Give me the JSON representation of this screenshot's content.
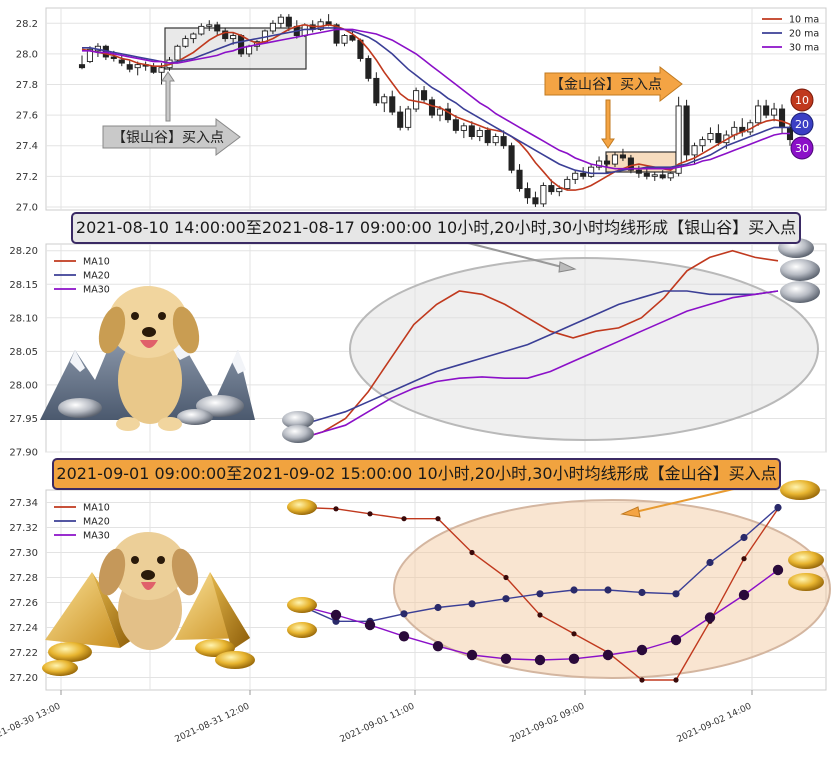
{
  "chart_data": [
    {
      "type": "candlestick",
      "title": "",
      "x_span": [
        "2021-08-30 13:00",
        "2021-09-02 15:00"
      ],
      "ylim": [
        26.98,
        28.3
      ],
      "yticks": [
        "28.2",
        "28.0",
        "27.8",
        "27.6",
        "27.4",
        "27.2",
        "27.0"
      ],
      "grid": true,
      "legend_position": "top-right",
      "legend": [
        "10 ma",
        "20 ma",
        "30 ma"
      ],
      "colors": {
        "ma10": "#c0391e",
        "ma20": "#3b3f96",
        "ma30": "#8b10c8",
        "candle": "#222222"
      },
      "candles": [
        [
          27.93,
          27.99,
          27.9,
          27.91
        ],
        [
          27.95,
          28.05,
          27.94,
          28.03
        ],
        [
          28.02,
          28.07,
          27.98,
          28.05
        ],
        [
          28.05,
          28.06,
          27.96,
          27.98
        ],
        [
          27.98,
          28.02,
          27.95,
          27.97
        ],
        [
          27.96,
          27.99,
          27.92,
          27.94
        ],
        [
          27.93,
          27.96,
          27.88,
          27.9
        ],
        [
          27.91,
          27.95,
          27.86,
          27.93
        ],
        [
          27.93,
          27.95,
          27.89,
          27.92
        ],
        [
          27.92,
          27.94,
          27.87,
          27.88
        ],
        [
          27.88,
          27.94,
          27.8,
          27.91
        ],
        [
          27.91,
          27.98,
          27.89,
          27.96
        ],
        [
          27.96,
          28.06,
          27.95,
          28.05
        ],
        [
          28.05,
          28.12,
          28.04,
          28.1
        ],
        [
          28.1,
          28.14,
          28.07,
          28.13
        ],
        [
          28.13,
          28.2,
          28.12,
          28.18
        ],
        [
          28.18,
          28.22,
          28.15,
          28.19
        ],
        [
          28.19,
          28.21,
          28.12,
          28.15
        ],
        [
          28.15,
          28.17,
          28.08,
          28.1
        ],
        [
          28.1,
          28.14,
          28.06,
          28.12
        ],
        [
          28.12,
          28.13,
          27.98,
          28.0
        ],
        [
          28.0,
          28.06,
          27.98,
          28.05
        ],
        [
          28.05,
          28.09,
          28.02,
          28.08
        ],
        [
          28.08,
          28.16,
          28.07,
          28.15
        ],
        [
          28.15,
          28.22,
          28.13,
          28.2
        ],
        [
          28.2,
          28.26,
          28.17,
          28.24
        ],
        [
          28.24,
          28.26,
          28.15,
          28.18
        ],
        [
          28.18,
          28.22,
          28.1,
          28.12
        ],
        [
          28.12,
          28.2,
          28.11,
          28.19
        ],
        [
          28.19,
          28.22,
          28.14,
          28.16
        ],
        [
          28.16,
          28.23,
          28.15,
          28.21
        ],
        [
          28.21,
          28.26,
          28.18,
          28.19
        ],
        [
          28.19,
          28.2,
          28.05,
          28.07
        ],
        [
          28.07,
          28.13,
          28.05,
          28.12
        ],
        [
          28.12,
          28.15,
          28.08,
          28.09
        ],
        [
          28.09,
          28.1,
          27.95,
          27.97
        ],
        [
          27.97,
          27.99,
          27.82,
          27.84
        ],
        [
          27.84,
          27.88,
          27.66,
          27.68
        ],
        [
          27.68,
          27.74,
          27.62,
          27.72
        ],
        [
          27.72,
          27.76,
          27.6,
          27.62
        ],
        [
          27.62,
          27.66,
          27.5,
          27.52
        ],
        [
          27.52,
          27.66,
          27.5,
          27.64
        ],
        [
          27.64,
          27.78,
          27.62,
          27.76
        ],
        [
          27.76,
          27.79,
          27.68,
          27.7
        ],
        [
          27.7,
          27.72,
          27.58,
          27.6
        ],
        [
          27.6,
          27.66,
          27.56,
          27.64
        ],
        [
          27.64,
          27.68,
          27.55,
          27.57
        ],
        [
          27.57,
          27.6,
          27.48,
          27.5
        ],
        [
          27.5,
          27.55,
          27.45,
          27.53
        ],
        [
          27.53,
          27.56,
          27.44,
          27.46
        ],
        [
          27.46,
          27.52,
          27.43,
          27.5
        ],
        [
          27.5,
          27.52,
          27.4,
          27.42
        ],
        [
          27.42,
          27.48,
          27.4,
          27.46
        ],
        [
          27.46,
          27.5,
          27.38,
          27.4
        ],
        [
          27.4,
          27.42,
          27.22,
          27.24
        ],
        [
          27.24,
          27.28,
          27.1,
          27.12
        ],
        [
          27.12,
          27.16,
          27.02,
          27.06
        ],
        [
          27.06,
          27.1,
          27.0,
          27.02
        ],
        [
          27.02,
          27.16,
          27.0,
          27.14
        ],
        [
          27.14,
          27.18,
          27.08,
          27.1
        ],
        [
          27.1,
          27.14,
          27.07,
          27.12
        ],
        [
          27.12,
          27.2,
          27.11,
          27.18
        ],
        [
          27.18,
          27.24,
          27.15,
          27.22
        ],
        [
          27.22,
          27.26,
          27.18,
          27.2
        ],
        [
          27.2,
          27.28,
          27.19,
          27.26
        ],
        [
          27.26,
          27.33,
          27.24,
          27.3
        ],
        [
          27.3,
          27.34,
          27.26,
          27.28
        ],
        [
          27.28,
          27.36,
          27.26,
          27.34
        ],
        [
          27.34,
          27.38,
          27.3,
          27.32
        ],
        [
          27.32,
          27.34,
          27.22,
          27.24
        ],
        [
          27.24,
          27.27,
          27.19,
          27.22
        ],
        [
          27.22,
          27.26,
          27.18,
          27.2
        ],
        [
          27.2,
          27.23,
          27.17,
          27.21
        ],
        [
          27.21,
          27.24,
          27.18,
          27.19
        ],
        [
          27.19,
          27.23,
          27.17,
          27.22
        ],
        [
          27.22,
          27.72,
          27.2,
          27.66
        ],
        [
          27.66,
          27.7,
          27.3,
          27.34
        ],
        [
          27.34,
          27.42,
          27.28,
          27.4
        ],
        [
          27.4,
          27.46,
          27.36,
          27.44
        ],
        [
          27.44,
          27.52,
          27.42,
          27.48
        ],
        [
          27.48,
          27.54,
          27.4,
          27.42
        ],
        [
          27.42,
          27.5,
          27.38,
          27.47
        ],
        [
          27.47,
          27.56,
          27.44,
          27.52
        ],
        [
          27.52,
          27.58,
          27.46,
          27.49
        ],
        [
          27.49,
          27.57,
          27.47,
          27.55
        ],
        [
          27.55,
          27.7,
          27.53,
          27.66
        ],
        [
          27.66,
          27.7,
          27.58,
          27.6
        ],
        [
          27.6,
          27.68,
          27.56,
          27.64
        ],
        [
          27.64,
          27.67,
          27.48,
          27.52
        ],
        [
          27.52,
          27.54,
          27.4,
          27.44
        ]
      ],
      "ma10": [
        28.03,
        28.02,
        28.01,
        28.0,
        27.99,
        27.97,
        27.96,
        27.94,
        27.93,
        27.92,
        27.92,
        27.93,
        27.95,
        27.98,
        28.01,
        28.05,
        28.09,
        28.12,
        28.14,
        28.14,
        28.12,
        28.09,
        28.07,
        28.08,
        28.1,
        28.13,
        28.16,
        28.18,
        28.19,
        28.18,
        28.18,
        28.19,
        28.18,
        28.16,
        28.13,
        28.09,
        28.03,
        27.96,
        27.88,
        27.81,
        27.74,
        27.7,
        27.69,
        27.68,
        27.66,
        27.65,
        27.62,
        27.59,
        27.57,
        27.55,
        27.53,
        27.51,
        27.5,
        27.49,
        27.46,
        27.42,
        27.36,
        27.29,
        27.23,
        27.17,
        27.13,
        27.11,
        27.11,
        27.12,
        27.14,
        27.17,
        27.2,
        27.23,
        27.25,
        27.27,
        27.28,
        27.27,
        27.26,
        27.25,
        27.24,
        27.28,
        27.3,
        27.32,
        27.35,
        27.38,
        27.41,
        27.44,
        27.47,
        27.49,
        27.51,
        27.54,
        27.56,
        27.57,
        27.56,
        27.54
      ],
      "ma20": [
        28.04,
        28.04,
        28.03,
        28.02,
        28.01,
        28.0,
        27.99,
        27.98,
        27.97,
        27.96,
        27.95,
        27.94,
        27.95,
        27.96,
        27.97,
        27.99,
        28.01,
        28.03,
        28.05,
        28.07,
        28.08,
        28.09,
        28.1,
        28.11,
        28.12,
        28.13,
        28.14,
        28.15,
        28.16,
        28.16,
        28.17,
        28.17,
        28.17,
        28.16,
        28.15,
        28.13,
        28.11,
        28.08,
        28.04,
        28.0,
        27.95,
        27.9,
        27.86,
        27.82,
        27.78,
        27.75,
        27.71,
        27.68,
        27.64,
        27.61,
        27.58,
        27.55,
        27.52,
        27.49,
        27.46,
        27.43,
        27.4,
        27.37,
        27.34,
        27.31,
        27.28,
        27.26,
        27.24,
        27.23,
        27.22,
        27.22,
        27.22,
        27.23,
        27.24,
        27.25,
        27.25,
        27.26,
        27.26,
        27.26,
        27.26,
        27.27,
        27.28,
        27.3,
        27.32,
        27.34,
        27.37,
        27.4,
        27.42,
        27.44,
        27.46,
        27.48,
        27.5,
        27.52,
        27.52,
        27.52
      ],
      "ma30": [
        28.02,
        28.02,
        28.01,
        28.01,
        28.0,
        27.99,
        27.98,
        27.97,
        27.96,
        27.95,
        27.95,
        27.94,
        27.94,
        27.95,
        27.96,
        27.97,
        27.98,
        27.99,
        28.01,
        28.02,
        28.04,
        28.05,
        28.06,
        28.07,
        28.08,
        28.09,
        28.1,
        28.11,
        28.12,
        28.13,
        28.14,
        28.15,
        28.16,
        28.16,
        28.16,
        28.15,
        28.14,
        28.13,
        28.11,
        28.09,
        28.06,
        28.03,
        28.0,
        27.96,
        27.92,
        27.88,
        27.84,
        27.8,
        27.76,
        27.72,
        27.68,
        27.65,
        27.61,
        27.58,
        27.55,
        27.52,
        27.49,
        27.46,
        27.43,
        27.4,
        27.37,
        27.35,
        27.32,
        27.3,
        27.28,
        27.27,
        27.26,
        27.25,
        27.25,
        27.25,
        27.25,
        27.25,
        27.25,
        27.25,
        27.25,
        27.26,
        27.27,
        27.28,
        27.3,
        27.31,
        27.33,
        27.35,
        27.37,
        27.39,
        27.41,
        27.43,
        27.45,
        27.47,
        27.48,
        27.48
      ],
      "annotations": {
        "silver_label": "【银山谷】买入点",
        "gold_label": "【金山谷】买入点",
        "badges": [
          "10",
          "20",
          "30"
        ]
      }
    },
    {
      "type": "line",
      "title": "",
      "banner": "2021-08-10 14:00:00至2021-08-17 09:00:00 10小时,20小时,30小时均线形成【银山谷】买入点",
      "ylim": [
        27.9,
        28.21
      ],
      "yticks": [
        "28.20",
        "28.15",
        "28.10",
        "28.05",
        "28.00",
        "27.95",
        "27.90"
      ],
      "grid": true,
      "legend_position": "top-left",
      "series": [
        {
          "name": "MA10",
          "color": "#c0391e",
          "values": [
            27.92,
            27.93,
            27.95,
            27.99,
            28.04,
            28.09,
            28.12,
            28.14,
            28.135,
            28.12,
            28.1,
            28.08,
            28.07,
            28.08,
            28.085,
            28.1,
            28.13,
            28.17,
            28.19,
            28.2,
            28.19,
            28.185
          ]
        },
        {
          "name": "MA20",
          "color": "#3b3f96",
          "values": [
            27.94,
            27.95,
            27.96,
            27.975,
            27.99,
            28.005,
            28.02,
            28.03,
            28.04,
            28.05,
            28.06,
            28.075,
            28.09,
            28.105,
            28.12,
            28.13,
            28.14,
            28.14,
            28.135,
            28.135,
            28.135,
            28.14
          ]
        },
        {
          "name": "MA30",
          "color": "#8b10c8",
          "values": [
            27.92,
            27.93,
            27.94,
            27.96,
            27.98,
            27.995,
            28.005,
            28.01,
            28.012,
            28.01,
            28.01,
            28.02,
            28.035,
            28.05,
            28.065,
            28.08,
            28.095,
            28.11,
            28.12,
            28.13,
            28.135,
            28.14
          ]
        }
      ]
    },
    {
      "type": "line",
      "title": "",
      "banner": "2021-09-01 09:00:00至2021-09-02 15:00:00 10小时,20小时,30小时均线形成【金山谷】买入点",
      "ylim": [
        27.19,
        27.35
      ],
      "yticks": [
        "27.34",
        "27.32",
        "27.30",
        "27.28",
        "27.26",
        "27.24",
        "27.22",
        "27.20"
      ],
      "grid": true,
      "legend_position": "top-left",
      "xticks": [
        "2021-08-30 13:00",
        "2021-08-31 12:00",
        "2021-09-01 11:00",
        "2021-09-02 09:00",
        "2021-09-02 14:00"
      ],
      "series": [
        {
          "name": "MA10",
          "color": "#c0391e",
          "values": [
            27.336,
            27.335,
            27.331,
            27.327,
            27.327,
            27.3,
            27.28,
            27.25,
            27.235,
            27.22,
            27.198,
            27.198,
            27.245,
            27.295,
            27.335
          ]
        },
        {
          "name": "MA20",
          "color": "#3b3f96",
          "values": [
            27.257,
            27.245,
            27.245,
            27.251,
            27.256,
            27.259,
            27.263,
            27.267,
            27.27,
            27.27,
            27.268,
            27.267,
            27.292,
            27.312,
            27.336
          ]
        },
        {
          "name": "MA30",
          "color": "#8b10c8",
          "values": [
            27.257,
            27.25,
            27.242,
            27.233,
            27.225,
            27.218,
            27.215,
            27.214,
            27.215,
            27.218,
            27.222,
            27.23,
            27.248,
            27.266,
            27.286
          ]
        }
      ]
    }
  ]
}
